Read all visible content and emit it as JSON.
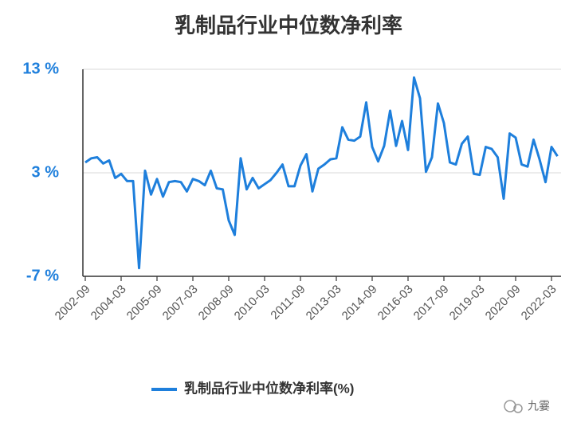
{
  "chart_data": {
    "type": "line",
    "title": "乳制品行业中位数净利率",
    "watermark": "九霎",
    "categories": [
      "2002-09",
      null,
      null,
      null,
      null,
      null,
      "2004-03",
      null,
      null,
      null,
      null,
      null,
      "2005-09",
      null,
      null,
      null,
      null,
      null,
      "2007-03",
      null,
      null,
      null,
      null,
      null,
      "2008-09",
      null,
      null,
      null,
      null,
      null,
      "2010-03",
      null,
      null,
      null,
      null,
      null,
      "2011-09",
      null,
      null,
      null,
      null,
      null,
      "2013-03",
      null,
      null,
      null,
      null,
      null,
      "2014-09",
      null,
      null,
      null,
      null,
      null,
      "2016-03",
      null,
      null,
      null,
      null,
      null,
      "2017-09",
      null,
      null,
      null,
      null,
      null,
      "2019-03",
      null,
      null,
      null,
      null,
      null,
      "2020-09",
      null,
      null,
      null,
      null,
      null,
      "2022-03",
      null
    ],
    "series": [
      {
        "name": "乳制品行业中位数净利率(%)",
        "color": "#1e7fdc",
        "values": [
          4.0,
          4.4,
          4.5,
          3.9,
          4.2,
          2.5,
          2.9,
          2.2,
          2.2,
          -6.2,
          3.2,
          0.9,
          2.4,
          0.7,
          2.1,
          2.2,
          2.1,
          1.2,
          2.4,
          2.2,
          1.8,
          3.2,
          1.5,
          1.4,
          -1.6,
          -3.0,
          4.4,
          1.4,
          2.5,
          1.5,
          1.9,
          2.3,
          3.0,
          3.8,
          1.7,
          1.7,
          3.7,
          4.8,
          1.2,
          3.4,
          3.8,
          4.3,
          4.4,
          7.4,
          6.2,
          6.1,
          6.5,
          9.8,
          5.5,
          4.1,
          5.6,
          9.0,
          5.6,
          8.0,
          5.2,
          12.2,
          10.2,
          3.1,
          4.5,
          9.7,
          7.8,
          4.0,
          3.8,
          5.8,
          6.5,
          2.9,
          2.8,
          5.5,
          5.3,
          4.5,
          0.5,
          6.8,
          6.4,
          3.8,
          3.6,
          6.2,
          4.3,
          2.1,
          5.5,
          4.6
        ]
      }
    ],
    "ylim": [
      -7,
      13
    ],
    "yticks": [
      {
        "value": -7,
        "label": "-7 %"
      },
      {
        "value": 3,
        "label": "3 %"
      },
      {
        "value": 13,
        "label": "13 %"
      }
    ],
    "grid": true,
    "legend": "bottom"
  }
}
